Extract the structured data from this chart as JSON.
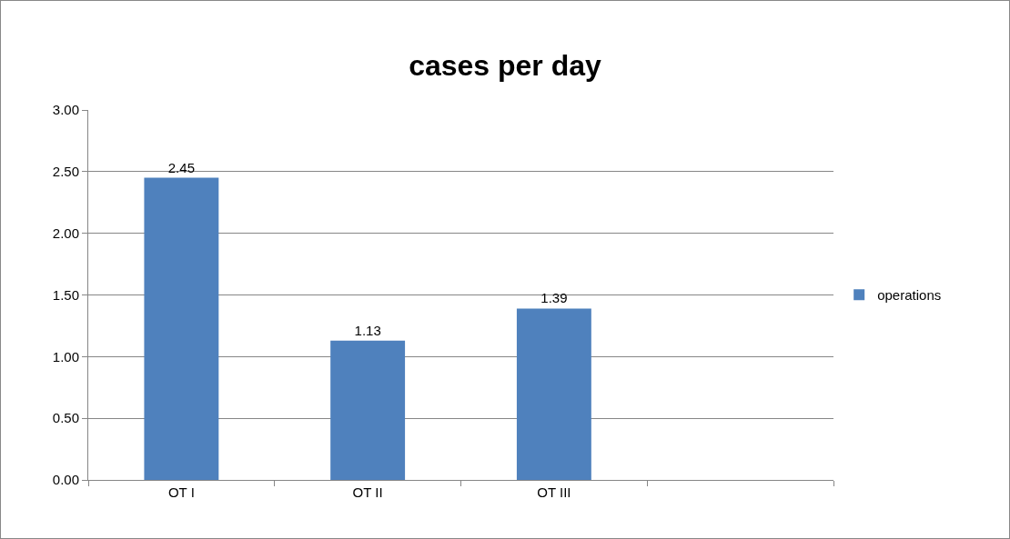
{
  "chart_data": {
    "type": "bar",
    "title": "cases per day",
    "categories": [
      "OT I",
      "OT II",
      "OT III",
      null
    ],
    "series": [
      {
        "name": "operations",
        "color": "#4f81bd",
        "values": [
          2.45,
          1.13,
          1.39,
          null
        ]
      }
    ],
    "ylim": [
      0,
      3
    ],
    "yticks": [
      {
        "value": 0,
        "label": "0.00"
      },
      {
        "value": 0.5,
        "label": "0.50"
      },
      {
        "value": 1,
        "label": "1.00"
      },
      {
        "value": 1.5,
        "label": "1.50"
      },
      {
        "value": 2,
        "label": "2.00"
      },
      {
        "value": 2.5,
        "label": "2.50"
      },
      {
        "value": 3,
        "label": "3.00"
      }
    ],
    "grid": "y",
    "legend": "right",
    "data_labels": true
  }
}
